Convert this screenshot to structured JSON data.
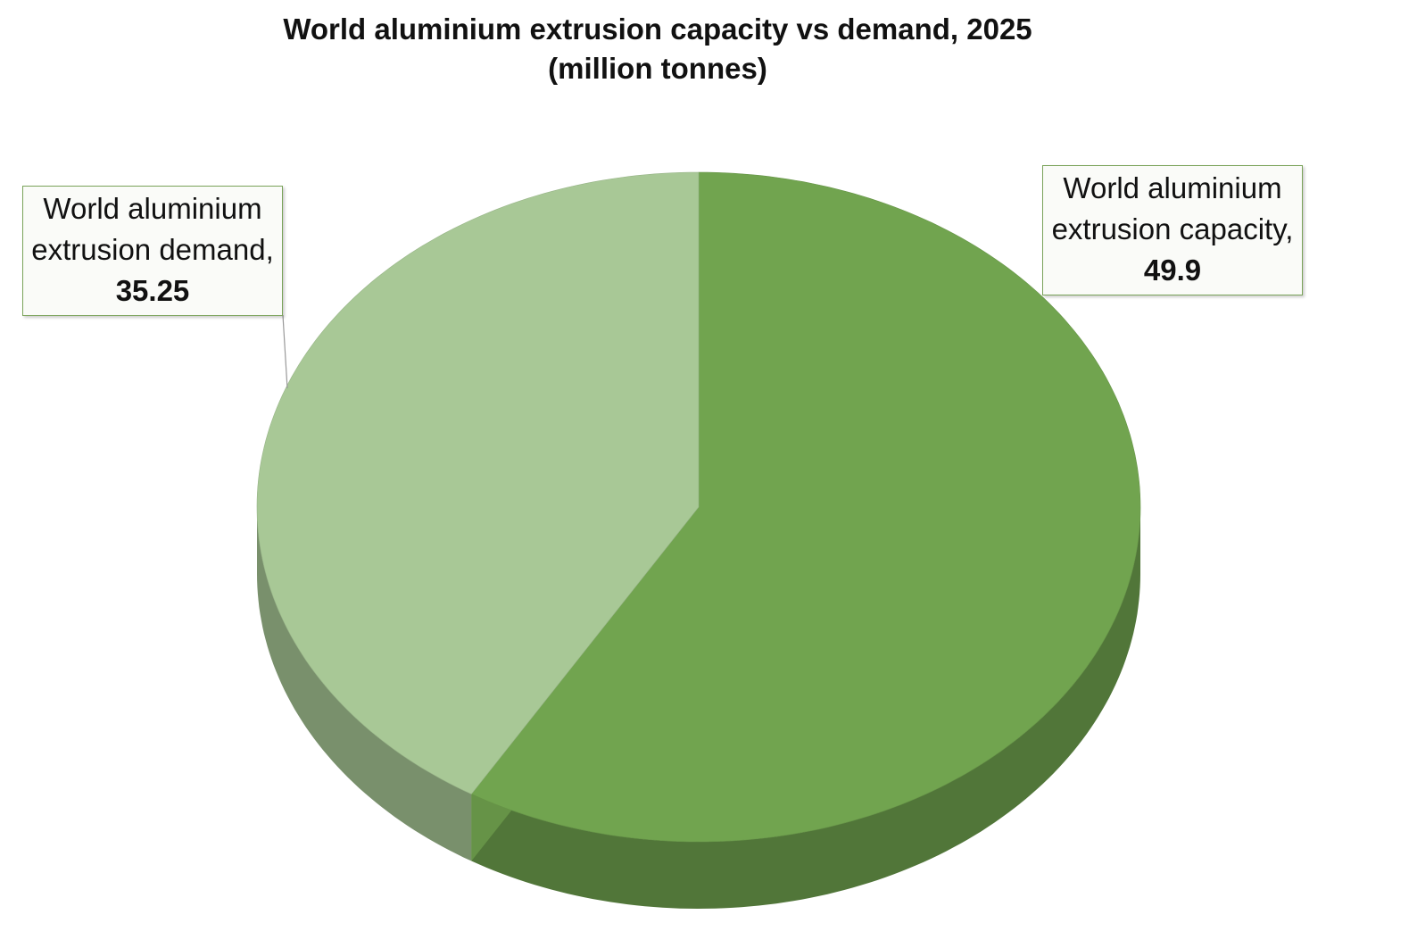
{
  "chart_data": {
    "type": "pie3d",
    "title": "World aluminium extrusion capacity vs demand, 2025",
    "subtitle": "(million tonnes)",
    "categories": [
      "World aluminium extrusion capacity,",
      "World aluminium extrusion demand,"
    ],
    "values": [
      49.9,
      35.25
    ],
    "colors": [
      "#71a44f",
      "#a8c896"
    ]
  }
}
